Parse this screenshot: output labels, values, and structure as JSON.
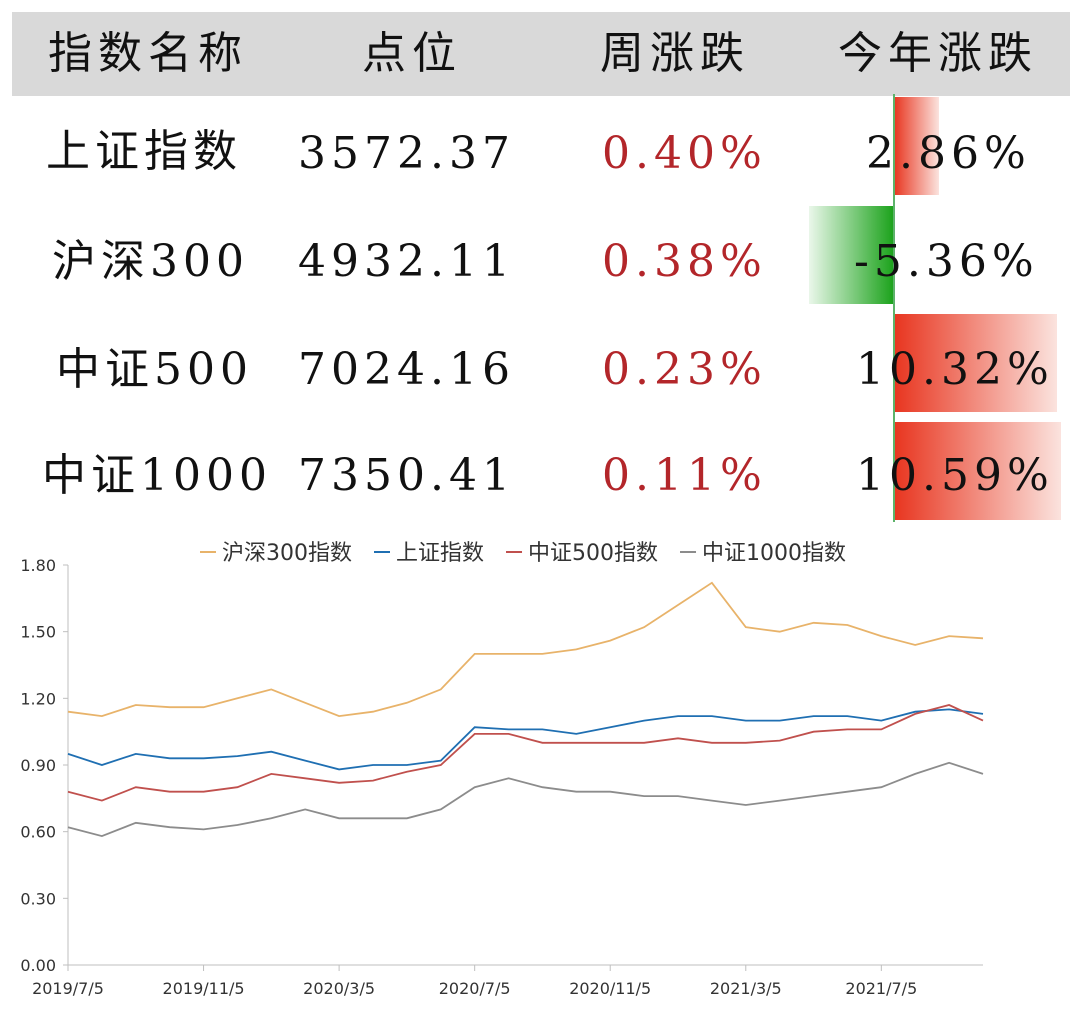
{
  "table": {
    "headers": [
      "指数名称",
      "点位",
      "周涨跌",
      "今年涨跌"
    ],
    "rows": [
      {
        "name": "上证指数",
        "points": "3572.37",
        "week": "0.40%",
        "ytd": "2.86%",
        "ytd_value": 2.86
      },
      {
        "name": "沪深300",
        "points": "4932.11",
        "week": "0.38%",
        "ytd": "-5.36%",
        "ytd_value": -5.36
      },
      {
        "name": "中证500",
        "points": "7024.16",
        "week": "0.23%",
        "ytd": "10.32%",
        "ytd_value": 10.32
      },
      {
        "name": "中证1000",
        "points": "7350.41",
        "week": "0.11%",
        "ytd": "10.59%",
        "ytd_value": 10.59
      }
    ],
    "colors": {
      "positive": "#e8351f",
      "negative": "#1aa21a",
      "week_text": "#b3262a",
      "header_bg": "#d9d9d9"
    }
  },
  "chart_data": {
    "type": "line",
    "ylim": [
      0,
      1.8
    ],
    "y_ticks": [
      "0.00",
      "0.30",
      "0.60",
      "0.90",
      "1.20",
      "1.50",
      "1.80"
    ],
    "x_tick_labels": [
      "2019/7/5",
      "2019/11/5",
      "2020/3/5",
      "2020/7/5",
      "2020/11/5",
      "2021/3/5",
      "2021/7/5"
    ],
    "x_tick_pos": [
      0,
      4,
      8,
      12,
      16,
      20,
      24
    ],
    "x": [
      "2019/7/5",
      "2019/8/5",
      "2019/9/5",
      "2019/10/5",
      "2019/11/5",
      "2019/12/5",
      "2020/1/5",
      "2020/2/5",
      "2020/3/5",
      "2020/4/5",
      "2020/5/5",
      "2020/6/5",
      "2020/7/5",
      "2020/8/5",
      "2020/9/5",
      "2020/10/5",
      "2020/11/5",
      "2020/12/5",
      "2021/1/5",
      "2021/2/5",
      "2021/3/5",
      "2021/4/5",
      "2021/5/5",
      "2021/6/5",
      "2021/7/5",
      "2021/8/5",
      "2021/9/5",
      "2021/10/5"
    ],
    "legend_position": "top",
    "series": [
      {
        "name": "沪深300指数",
        "color": "#e8b36a",
        "values": [
          1.14,
          1.12,
          1.17,
          1.16,
          1.16,
          1.2,
          1.24,
          1.18,
          1.12,
          1.14,
          1.18,
          1.24,
          1.4,
          1.4,
          1.4,
          1.42,
          1.46,
          1.52,
          1.62,
          1.72,
          1.52,
          1.5,
          1.54,
          1.53,
          1.48,
          1.44,
          1.48,
          1.47
        ]
      },
      {
        "name": "上证指数",
        "color": "#1f6fb2",
        "values": [
          0.95,
          0.9,
          0.95,
          0.93,
          0.93,
          0.94,
          0.96,
          0.92,
          0.88,
          0.9,
          0.9,
          0.92,
          1.07,
          1.06,
          1.06,
          1.04,
          1.07,
          1.1,
          1.12,
          1.12,
          1.1,
          1.1,
          1.12,
          1.12,
          1.1,
          1.14,
          1.15,
          1.13
        ]
      },
      {
        "name": "中证500指数",
        "color": "#c0504d",
        "values": [
          0.78,
          0.74,
          0.8,
          0.78,
          0.78,
          0.8,
          0.86,
          0.84,
          0.82,
          0.83,
          0.87,
          0.9,
          1.04,
          1.04,
          1.0,
          1.0,
          1.0,
          1.0,
          1.02,
          1.0,
          1.0,
          1.01,
          1.05,
          1.06,
          1.06,
          1.13,
          1.17,
          1.1
        ]
      },
      {
        "name": "中证1000指数",
        "color": "#8c8c8c",
        "values": [
          0.62,
          0.58,
          0.64,
          0.62,
          0.61,
          0.63,
          0.66,
          0.7,
          0.66,
          0.66,
          0.66,
          0.7,
          0.8,
          0.84,
          0.8,
          0.78,
          0.78,
          0.76,
          0.76,
          0.74,
          0.72,
          0.74,
          0.76,
          0.78,
          0.8,
          0.86,
          0.91,
          0.86
        ]
      }
    ]
  }
}
